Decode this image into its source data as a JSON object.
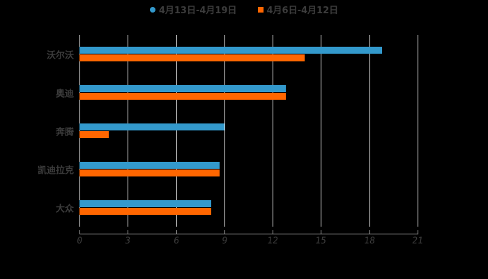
{
  "chart_data": {
    "type": "bar",
    "orientation": "horizontal",
    "title": "",
    "xlabel": "",
    "ylabel": "",
    "categories": [
      "沃尔沃",
      "奥迪",
      "奔腾",
      "凯迪拉克",
      "大众"
    ],
    "series": [
      {
        "name": "4月13日-4月19日",
        "color": "#3399cc",
        "values": [
          18.8,
          12.8,
          9.0,
          8.7,
          8.2
        ]
      },
      {
        "name": "4月6日-4月12日",
        "color": "#ff6600",
        "values": [
          14.0,
          12.8,
          1.8,
          8.7,
          8.2
        ]
      }
    ],
    "xlim": [
      0,
      21
    ],
    "xticks": [
      "0",
      "3",
      "6",
      "9",
      "12",
      "15",
      "18",
      "21"
    ],
    "grid": true,
    "legend_position": "top"
  },
  "legend": [
    {
      "label": "4月13日-4月19日",
      "color": "#3399cc",
      "marker": "circle"
    },
    {
      "label": "4月6日-4月12日",
      "color": "#ff6600",
      "marker": "square"
    }
  ]
}
